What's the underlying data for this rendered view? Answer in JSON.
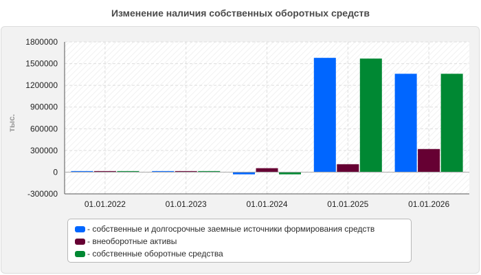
{
  "chart_data": {
    "type": "bar",
    "title": "Изменение наличия собственных оборотных средств",
    "ylabel": "тыс.",
    "categories": [
      "01.01.2022",
      "01.01.2023",
      "01.01.2024",
      "01.01.2025",
      "01.01.2026"
    ],
    "series": [
      {
        "name": "- собственные и долгосрочные заемные источники формирования средств",
        "color": "#0066ff",
        "values": [
          15000,
          15000,
          -30000,
          1580000,
          1360000
        ]
      },
      {
        "name": "- внеоборотные активы",
        "color": "#660033",
        "values": [
          15000,
          15000,
          55000,
          110000,
          320000
        ]
      },
      {
        "name": "- собственные оборотные средства",
        "color": "#008833",
        "values": [
          15000,
          15000,
          -30000,
          1570000,
          1360000
        ]
      }
    ],
    "ylim": [
      -300000,
      1800000
    ],
    "yticks": [
      -300000,
      0,
      300000,
      600000,
      900000,
      1200000,
      1500000,
      1800000
    ],
    "grid": true,
    "legend_position": "bottom"
  }
}
